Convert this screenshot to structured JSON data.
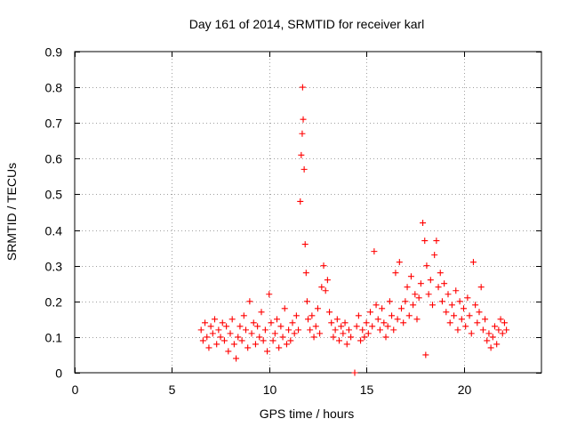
{
  "chart_data": {
    "type": "scatter",
    "title": "Day 161 of 2014, SRMTID for receiver karl",
    "xlabel": "GPS time / hours",
    "ylabel": "SRMTID / TECUs",
    "xlim": [
      0,
      24
    ],
    "ylim": [
      0,
      0.9
    ],
    "xticks": [
      0,
      5,
      10,
      15,
      20
    ],
    "yticks": [
      0,
      0.1,
      0.2,
      0.3,
      0.4,
      0.5,
      0.6,
      0.7,
      0.8,
      0.9
    ],
    "xtick_labels": [
      "0",
      "5",
      "10",
      "15",
      "20"
    ],
    "ytick_labels": [
      "0",
      "0.1",
      "0.2",
      "0.3",
      "0.4",
      "0.5",
      "0.6",
      "0.7",
      "0.8",
      "0.9"
    ],
    "grid": true,
    "marker": "plus",
    "color": "#ff0000",
    "series": [
      {
        "name": "SRMTID",
        "points": [
          [
            6.5,
            0.12
          ],
          [
            6.6,
            0.09
          ],
          [
            6.7,
            0.14
          ],
          [
            6.8,
            0.1
          ],
          [
            6.9,
            0.07
          ],
          [
            7.0,
            0.13
          ],
          [
            7.1,
            0.11
          ],
          [
            7.2,
            0.15
          ],
          [
            7.3,
            0.08
          ],
          [
            7.4,
            0.12
          ],
          [
            7.5,
            0.1
          ],
          [
            7.6,
            0.14
          ],
          [
            7.7,
            0.09
          ],
          [
            7.8,
            0.13
          ],
          [
            7.9,
            0.06
          ],
          [
            8.0,
            0.11
          ],
          [
            8.1,
            0.15
          ],
          [
            8.2,
            0.08
          ],
          [
            8.3,
            0.04
          ],
          [
            8.4,
            0.1
          ],
          [
            8.5,
            0.13
          ],
          [
            8.6,
            0.09
          ],
          [
            8.7,
            0.16
          ],
          [
            8.8,
            0.12
          ],
          [
            8.9,
            0.07
          ],
          [
            9.0,
            0.2
          ],
          [
            9.1,
            0.11
          ],
          [
            9.2,
            0.14
          ],
          [
            9.3,
            0.08
          ],
          [
            9.4,
            0.13
          ],
          [
            9.5,
            0.1
          ],
          [
            9.6,
            0.17
          ],
          [
            9.7,
            0.09
          ],
          [
            9.8,
            0.12
          ],
          [
            9.9,
            0.06
          ],
          [
            10.0,
            0.22
          ],
          [
            10.1,
            0.14
          ],
          [
            10.2,
            0.09
          ],
          [
            10.3,
            0.11
          ],
          [
            10.4,
            0.15
          ],
          [
            10.5,
            0.07
          ],
          [
            10.6,
            0.13
          ],
          [
            10.7,
            0.1
          ],
          [
            10.8,
            0.18
          ],
          [
            10.9,
            0.08
          ],
          [
            11.0,
            0.12
          ],
          [
            11.1,
            0.09
          ],
          [
            11.2,
            0.14
          ],
          [
            11.3,
            0.11
          ],
          [
            11.4,
            0.16
          ],
          [
            11.5,
            0.12
          ],
          [
            11.6,
            0.48
          ],
          [
            11.65,
            0.61
          ],
          [
            11.7,
            0.67
          ],
          [
            11.72,
            0.8
          ],
          [
            11.75,
            0.71
          ],
          [
            11.8,
            0.57
          ],
          [
            11.85,
            0.36
          ],
          [
            11.9,
            0.28
          ],
          [
            11.95,
            0.2
          ],
          [
            12.0,
            0.15
          ],
          [
            12.1,
            0.12
          ],
          [
            12.2,
            0.16
          ],
          [
            12.3,
            0.1
          ],
          [
            12.4,
            0.13
          ],
          [
            12.5,
            0.18
          ],
          [
            12.6,
            0.11
          ],
          [
            12.7,
            0.24
          ],
          [
            12.8,
            0.3
          ],
          [
            12.9,
            0.23
          ],
          [
            13.0,
            0.26
          ],
          [
            13.1,
            0.17
          ],
          [
            13.2,
            0.14
          ],
          [
            13.3,
            0.1
          ],
          [
            13.4,
            0.12
          ],
          [
            13.5,
            0.15
          ],
          [
            13.6,
            0.09
          ],
          [
            13.7,
            0.13
          ],
          [
            13.8,
            0.11
          ],
          [
            13.9,
            0.14
          ],
          [
            14.0,
            0.08
          ],
          [
            14.1,
            0.12
          ],
          [
            14.2,
            0.1
          ],
          [
            14.4,
            0.0
          ],
          [
            14.5,
            0.13
          ],
          [
            14.6,
            0.16
          ],
          [
            14.7,
            0.09
          ],
          [
            14.8,
            0.12
          ],
          [
            14.9,
            0.1
          ],
          [
            15.0,
            0.14
          ],
          [
            15.1,
            0.11
          ],
          [
            15.2,
            0.17
          ],
          [
            15.3,
            0.13
          ],
          [
            15.4,
            0.34
          ],
          [
            15.5,
            0.19
          ],
          [
            15.6,
            0.15
          ],
          [
            15.7,
            0.12
          ],
          [
            15.8,
            0.18
          ],
          [
            15.9,
            0.14
          ],
          [
            16.0,
            0.1
          ],
          [
            16.1,
            0.13
          ],
          [
            16.2,
            0.2
          ],
          [
            16.3,
            0.16
          ],
          [
            16.4,
            0.12
          ],
          [
            16.5,
            0.28
          ],
          [
            16.6,
            0.15
          ],
          [
            16.7,
            0.31
          ],
          [
            16.8,
            0.18
          ],
          [
            16.9,
            0.14
          ],
          [
            17.0,
            0.2
          ],
          [
            17.1,
            0.24
          ],
          [
            17.2,
            0.16
          ],
          [
            17.3,
            0.27
          ],
          [
            17.4,
            0.19
          ],
          [
            17.5,
            0.22
          ],
          [
            17.6,
            0.15
          ],
          [
            17.7,
            0.21
          ],
          [
            17.8,
            0.25
          ],
          [
            17.9,
            0.42
          ],
          [
            18.0,
            0.37
          ],
          [
            18.05,
            0.05
          ],
          [
            18.1,
            0.3
          ],
          [
            18.2,
            0.22
          ],
          [
            18.3,
            0.26
          ],
          [
            18.4,
            0.19
          ],
          [
            18.5,
            0.33
          ],
          [
            18.6,
            0.37
          ],
          [
            18.7,
            0.24
          ],
          [
            18.8,
            0.28
          ],
          [
            18.9,
            0.2
          ],
          [
            19.0,
            0.25
          ],
          [
            19.1,
            0.17
          ],
          [
            19.2,
            0.22
          ],
          [
            19.3,
            0.14
          ],
          [
            19.4,
            0.19
          ],
          [
            19.5,
            0.16
          ],
          [
            19.6,
            0.23
          ],
          [
            19.7,
            0.12
          ],
          [
            19.8,
            0.2
          ],
          [
            19.9,
            0.15
          ],
          [
            20.0,
            0.18
          ],
          [
            20.1,
            0.13
          ],
          [
            20.2,
            0.21
          ],
          [
            20.3,
            0.16
          ],
          [
            20.4,
            0.11
          ],
          [
            20.5,
            0.31
          ],
          [
            20.6,
            0.19
          ],
          [
            20.7,
            0.14
          ],
          [
            20.8,
            0.17
          ],
          [
            20.9,
            0.24
          ],
          [
            21.0,
            0.12
          ],
          [
            21.1,
            0.15
          ],
          [
            21.2,
            0.09
          ],
          [
            21.3,
            0.11
          ],
          [
            21.4,
            0.07
          ],
          [
            21.5,
            0.1
          ],
          [
            21.6,
            0.13
          ],
          [
            21.7,
            0.08
          ],
          [
            21.8,
            0.12
          ],
          [
            21.9,
            0.15
          ],
          [
            22.0,
            0.11
          ],
          [
            22.1,
            0.14
          ],
          [
            22.2,
            0.12
          ]
        ]
      }
    ]
  }
}
